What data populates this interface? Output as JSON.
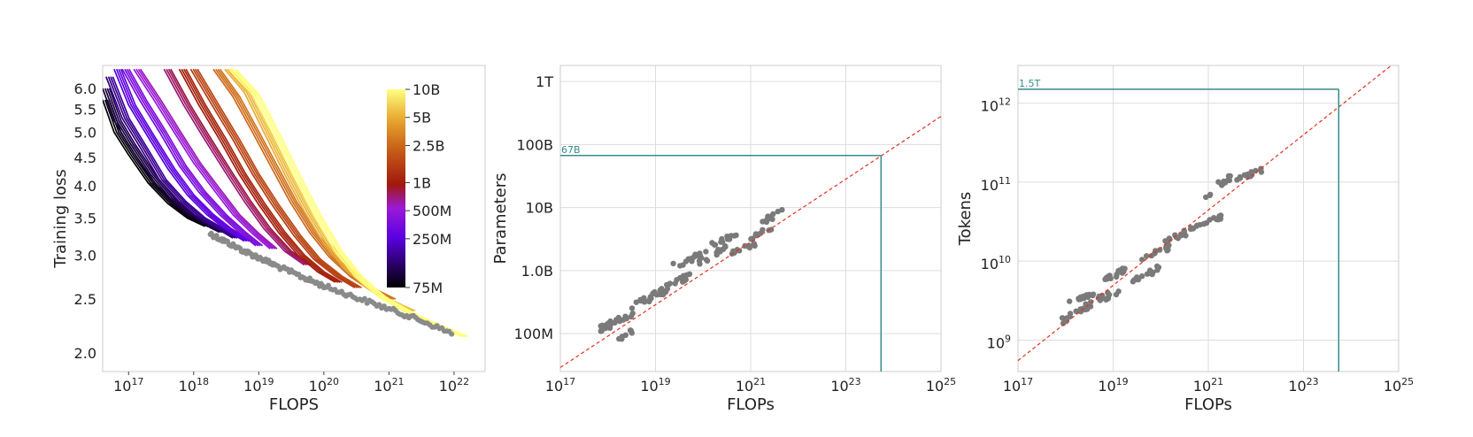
{
  "chart_data": [
    {
      "type": "line",
      "xlabel": "FLOPS",
      "ylabel": "Training loss",
      "x_scale": "log",
      "y_scale": "log",
      "xlim": [
        4e+16,
        3e+22
      ],
      "ylim": [
        1.85,
        6.6
      ],
      "x_ticks": [
        {
          "value": 1e+17,
          "base": "10",
          "exp": "17"
        },
        {
          "value": 1e+18,
          "base": "10",
          "exp": "18"
        },
        {
          "value": 1e+19,
          "base": "10",
          "exp": "19"
        },
        {
          "value": 1e+20,
          "base": "10",
          "exp": "20"
        },
        {
          "value": 1e+21,
          "base": "10",
          "exp": "21"
        },
        {
          "value": 1e+22,
          "base": "10",
          "exp": "22"
        }
      ],
      "y_ticks": [
        {
          "value": 2.0,
          "label": "2.0"
        },
        {
          "value": 2.5,
          "label": "2.5"
        },
        {
          "value": 3.0,
          "label": "3.0"
        },
        {
          "value": 3.5,
          "label": "3.5"
        },
        {
          "value": 4.0,
          "label": "4.0"
        },
        {
          "value": 4.5,
          "label": "4.5"
        },
        {
          "value": 5.0,
          "label": "5.0"
        },
        {
          "value": 5.5,
          "label": "5.5"
        },
        {
          "value": 6.0,
          "label": "6.0"
        }
      ],
      "grid": false,
      "colormap": "gnuplot",
      "colorbar": {
        "scale": "log",
        "min": 75000000.0,
        "max": 10000000000.0,
        "ticks": [
          {
            "value": 10000000000.0,
            "label": "10B"
          },
          {
            "value": 5000000000.0,
            "label": "5B"
          },
          {
            "value": 2500000000.0,
            "label": "2.5B"
          },
          {
            "value": 1000000000.0,
            "label": "1B"
          },
          {
            "value": 500000000.0,
            "label": "500M"
          },
          {
            "value": 250000000.0,
            "label": "250M"
          },
          {
            "value": 75000000.0,
            "label": "75M"
          }
        ]
      },
      "series": [
        {
          "params": 75000000.0,
          "points": [
            [
              4e+16,
              5.72
            ],
            [
              6e+16,
              5.0
            ],
            [
              1e+17,
              4.55
            ],
            [
              2e+17,
              4.05
            ],
            [
              4e+17,
              3.72
            ],
            [
              8e+17,
              3.5
            ],
            [
              1.5e+18,
              3.38
            ]
          ]
        },
        {
          "params": 100000000.0,
          "points": [
            [
              4e+16,
              6.0
            ],
            [
              6e+16,
              5.25
            ],
            [
              1e+17,
              4.75
            ],
            [
              2e+17,
              4.2
            ],
            [
              4e+17,
              3.8
            ],
            [
              8e+17,
              3.55
            ],
            [
              1.5e+18,
              3.4
            ],
            [
              2.5e+18,
              3.3
            ]
          ]
        },
        {
          "params": 150000000.0,
          "points": [
            [
              4.5e+16,
              6.3
            ],
            [
              8e+16,
              5.3
            ],
            [
              1.5e+17,
              4.7
            ],
            [
              3e+17,
              4.1
            ],
            [
              6e+17,
              3.75
            ],
            [
              1.2e+18,
              3.5
            ],
            [
              2.5e+18,
              3.33
            ],
            [
              4e+18,
              3.22
            ]
          ]
        },
        {
          "params": 250000000.0,
          "points": [
            [
              6e+16,
              6.5
            ],
            [
              1e+17,
              5.6
            ],
            [
              2e+17,
              4.9
            ],
            [
              4e+17,
              4.3
            ],
            [
              8e+17,
              3.85
            ],
            [
              1.6e+18,
              3.55
            ],
            [
              3e+18,
              3.35
            ],
            [
              6e+18,
              3.18
            ]
          ]
        },
        {
          "params": 350000000.0,
          "points": [
            [
              8e+16,
              6.5
            ],
            [
              1.5e+17,
              5.7
            ],
            [
              3e+17,
              5.0
            ],
            [
              6e+17,
              4.35
            ],
            [
              1.2e+18,
              3.9
            ],
            [
              2.5e+18,
              3.55
            ],
            [
              5e+18,
              3.3
            ],
            [
              9e+18,
              3.12
            ]
          ]
        },
        {
          "params": 500000000.0,
          "points": [
            [
              1.2e+17,
              6.5
            ],
            [
              2.5e+17,
              5.7
            ],
            [
              5e+17,
              5.0
            ],
            [
              1e+18,
              4.4
            ],
            [
              2e+18,
              3.95
            ],
            [
              4e+18,
              3.55
            ],
            [
              8e+18,
              3.28
            ],
            [
              1.5e+19,
              3.08
            ]
          ]
        },
        {
          "params": 700000000.0,
          "points": [
            [
              3.5e+17,
              6.5
            ],
            [
              7e+17,
              5.6
            ],
            [
              1.4e+18,
              4.9
            ],
            [
              3e+18,
              4.25
            ],
            [
              6e+18,
              3.75
            ],
            [
              1.2e+19,
              3.35
            ],
            [
              2.5e+19,
              3.05
            ],
            [
              5e+19,
              2.88
            ]
          ]
        },
        {
          "params": 1000000000.0,
          "points": [
            [
              6e+17,
              6.5
            ],
            [
              1.2e+18,
              5.6
            ],
            [
              2.5e+18,
              4.85
            ],
            [
              5e+18,
              4.2
            ],
            [
              1e+19,
              3.7
            ],
            [
              2e+19,
              3.3
            ],
            [
              4e+19,
              3.0
            ],
            [
              8e+19,
              2.8
            ],
            [
              1.5e+20,
              2.68
            ]
          ]
        },
        {
          "params": 1500000000.0,
          "points": [
            [
              9e+17,
              6.5
            ],
            [
              2e+18,
              5.55
            ],
            [
              4e+18,
              4.85
            ],
            [
              8e+18,
              4.2
            ],
            [
              1.6e+19,
              3.7
            ],
            [
              3.5e+19,
              3.25
            ],
            [
              7e+19,
              2.95
            ],
            [
              1.5e+20,
              2.75
            ],
            [
              3e+20,
              2.62
            ]
          ]
        },
        {
          "params": 2500000000.0,
          "points": [
            [
              2e+18,
              6.5
            ],
            [
              4e+18,
              5.8
            ],
            [
              8e+18,
              5.0
            ],
            [
              1.6e+19,
              4.3
            ],
            [
              3e+19,
              3.75
            ],
            [
              6e+19,
              3.3
            ],
            [
              1.2e+20,
              2.98
            ],
            [
              2.5e+20,
              2.75
            ],
            [
              5e+20,
              2.6
            ],
            [
              1e+21,
              2.5
            ]
          ]
        },
        {
          "params": 5000000000.0,
          "points": [
            [
              3e+18,
              6.5
            ],
            [
              6e+18,
              5.9
            ],
            [
              1.2e+19,
              5.0
            ],
            [
              2.5e+19,
              4.2
            ],
            [
              5e+19,
              3.6
            ],
            [
              1e+20,
              3.15
            ],
            [
              2e+20,
              2.85
            ],
            [
              4e+20,
              2.65
            ],
            [
              8e+20,
              2.5
            ],
            [
              2e+21,
              2.38
            ]
          ]
        },
        {
          "params": 10000000000.0,
          "points": [
            [
              3.5e+18,
              6.5
            ],
            [
              8e+18,
              5.85
            ],
            [
              1.6e+19,
              5.0
            ],
            [
              3.5e+19,
              4.15
            ],
            [
              7e+19,
              3.55
            ],
            [
              1.5e+20,
              3.05
            ],
            [
              3e+20,
              2.75
            ],
            [
              7e+20,
              2.52
            ],
            [
              2e+21,
              2.35
            ],
            [
              6e+21,
              2.22
            ],
            [
              1.3e+22,
              2.14
            ]
          ]
        }
      ],
      "envelope_points": [
        [
          1.8e+18,
          3.28
        ],
        [
          3e+18,
          3.18
        ],
        [
          6e+18,
          3.05
        ],
        [
          1e+19,
          2.97
        ],
        [
          2e+19,
          2.86
        ],
        [
          5e+19,
          2.73
        ],
        [
          1e+20,
          2.64
        ],
        [
          3e+20,
          2.52
        ],
        [
          1e+21,
          2.4
        ],
        [
          3e+21,
          2.29
        ],
        [
          1e+22,
          2.16
        ]
      ]
    },
    {
      "type": "scatter",
      "xlabel": "FLOPs",
      "ylabel": "Parameters",
      "x_scale": "log",
      "y_scale": "log",
      "xlim": [
        1e+17,
        1e+25
      ],
      "ylim": [
        25000000.0,
        1800000000000.0
      ],
      "x_ticks": [
        {
          "value": 1e+17,
          "base": "10",
          "exp": "17"
        },
        {
          "value": 1e+19,
          "base": "10",
          "exp": "19"
        },
        {
          "value": 1e+21,
          "base": "10",
          "exp": "21"
        },
        {
          "value": 1e+23,
          "base": "10",
          "exp": "23"
        },
        {
          "value": 1e+25,
          "base": "10",
          "exp": "25"
        }
      ],
      "y_ticks": [
        {
          "value": 100000000.0,
          "label": "100M"
        },
        {
          "value": 1000000000.0,
          "label": "1.0B"
        },
        {
          "value": 10000000000.0,
          "label": "10B"
        },
        {
          "value": 100000000000.0,
          "label": "100B"
        },
        {
          "value": 1000000000000.0,
          "label": "1T"
        }
      ],
      "grid": true,
      "fit_line": {
        "points": [
          [
            1e+17,
            29000000.0
          ],
          [
            1e+25,
            280000000000.0
          ]
        ],
        "color": "#e03020"
      },
      "projection": {
        "x": 5.5e+23,
        "y": 67000000000.0,
        "label": "67B",
        "color": "#3a8a8a"
      },
      "points_color": "#7a7a7a",
      "clusters": [
        {
          "x_from": 6e+17,
          "x_to": 3.5e+18,
          "y_from": 100000000.0,
          "y_to": 230000000.0,
          "n": 22
        },
        {
          "x_from": 1.5e+18,
          "x_to": 4e+18,
          "y_from": 70000000.0,
          "y_to": 140000000.0,
          "n": 8
        },
        {
          "x_from": 3e+18,
          "x_to": 1.5e+19,
          "y_from": 220000000.0,
          "y_to": 550000000.0,
          "n": 18
        },
        {
          "x_from": 1.2e+19,
          "x_to": 6e+19,
          "y_from": 400000000.0,
          "y_to": 1000000000.0,
          "n": 20
        },
        {
          "x_from": 2.2e+19,
          "x_to": 1.2e+20,
          "y_from": 1000000000.0,
          "y_to": 2200000000.0,
          "n": 16
        },
        {
          "x_from": 8e+19,
          "x_to": 3e+20,
          "y_from": 1200000000.0,
          "y_to": 2600000000.0,
          "n": 14
        },
        {
          "x_from": 1.5e+20,
          "x_to": 5e+20,
          "y_from": 2400000000.0,
          "y_to": 4000000000.0,
          "n": 12
        },
        {
          "x_from": 4e+20,
          "x_to": 1.5e+21,
          "y_from": 1800000000.0,
          "y_to": 3000000000.0,
          "n": 12
        },
        {
          "x_from": 1e+21,
          "x_to": 3e+21,
          "y_from": 3000000000.0,
          "y_to": 5500000000.0,
          "n": 10
        },
        {
          "x_from": 1.5e+21,
          "x_to": 5e+21,
          "y_from": 5000000000.0,
          "y_to": 10000000000.0,
          "n": 12
        }
      ]
    },
    {
      "type": "scatter",
      "xlabel": "FLOPs",
      "ylabel": "Tokens",
      "x_scale": "log",
      "y_scale": "log",
      "xlim": [
        1e+17,
        1e+25
      ],
      "ylim": [
        400000000.0,
        3000000000000.0
      ],
      "x_ticks": [
        {
          "value": 1e+17,
          "base": "10",
          "exp": "17"
        },
        {
          "value": 1e+19,
          "base": "10",
          "exp": "19"
        },
        {
          "value": 1e+21,
          "base": "10",
          "exp": "21"
        },
        {
          "value": 1e+23,
          "base": "10",
          "exp": "23"
        },
        {
          "value": 1e+25,
          "base": "10",
          "exp": "25"
        }
      ],
      "y_ticks": [
        {
          "value": 1000000000.0,
          "base": "10",
          "exp": "9"
        },
        {
          "value": 10000000000.0,
          "base": "10",
          "exp": "10"
        },
        {
          "value": 100000000000.0,
          "base": "10",
          "exp": "11"
        },
        {
          "value": 1000000000000.0,
          "base": "10",
          "exp": "12"
        }
      ],
      "grid": true,
      "fit_line": {
        "points": [
          [
            1e+17,
            550000000.0
          ],
          [
            7e+24,
            3000000000000.0
          ]
        ],
        "color": "#e03020"
      },
      "projection": {
        "x": 5.5e+23,
        "y": 1500000000000.0,
        "label": "1.5T",
        "color": "#3a8a8a"
      },
      "points_color": "#7a7a7a",
      "clusters": [
        {
          "x_from": 7e+17,
          "x_to": 3e+18,
          "y_from": 1500000000.0,
          "y_to": 3000000000.0,
          "n": 20
        },
        {
          "x_from": 1.2e+18,
          "x_to": 4e+18,
          "y_from": 3000000000.0,
          "y_to": 4000000000.0,
          "n": 14
        },
        {
          "x_from": 3e+18,
          "x_to": 1.5e+19,
          "y_from": 2500000000.0,
          "y_to": 5000000000.0,
          "n": 14
        },
        {
          "x_from": 6e+18,
          "x_to": 2e+19,
          "y_from": 5000000000.0,
          "y_to": 9000000000.0,
          "n": 14
        },
        {
          "x_from": 2e+19,
          "x_to": 1e+20,
          "y_from": 5000000000.0,
          "y_to": 9000000000.0,
          "n": 14
        },
        {
          "x_from": 4e+19,
          "x_to": 1.5e+20,
          "y_from": 10000000000.0,
          "y_to": 16000000000.0,
          "n": 12
        },
        {
          "x_from": 1e+20,
          "x_to": 5e+20,
          "y_from": 15000000000.0,
          "y_to": 28000000000.0,
          "n": 16
        },
        {
          "x_from": 5e+20,
          "x_to": 2e+21,
          "y_from": 25000000000.0,
          "y_to": 40000000000.0,
          "n": 14
        },
        {
          "x_from": 8e+20,
          "x_to": 3e+21,
          "y_from": 60000000000.0,
          "y_to": 130000000000.0,
          "n": 14
        },
        {
          "x_from": 4e+21,
          "x_to": 1.5e+22,
          "y_from": 100000000000.0,
          "y_to": 160000000000.0,
          "n": 12
        }
      ]
    }
  ]
}
